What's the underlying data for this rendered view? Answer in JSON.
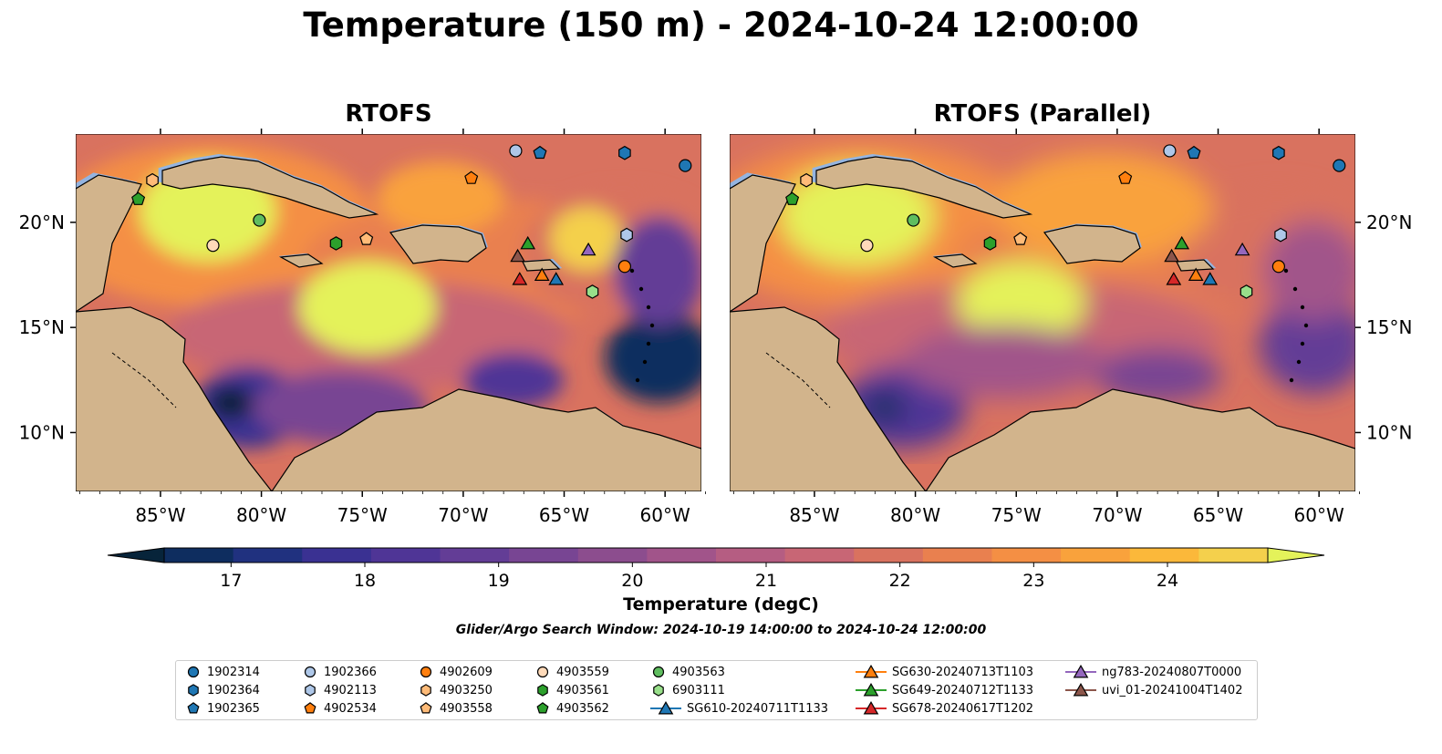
{
  "title": "Temperature (150 m) - 2024-10-24 12:00:00",
  "panels": {
    "left_title": "RTOFS",
    "right_title": "RTOFS (Parallel)"
  },
  "lat_labels": [
    "20°N",
    "15°N",
    "10°N"
  ],
  "lon_labels": [
    "85°W",
    "80°W",
    "75°W",
    "70°W",
    "65°W",
    "60°W"
  ],
  "colorbar": {
    "label": "Temperature (degC)",
    "ticks": [
      "17",
      "18",
      "19",
      "20",
      "21",
      "22",
      "23",
      "24"
    ],
    "range": [
      16.5,
      24.75
    ],
    "colors": [
      "#07243a",
      "#0e2d5f",
      "#20317f",
      "#3a3192",
      "#4f3596",
      "#633d96",
      "#784593",
      "#8c4d8e",
      "#a1548a",
      "#b55d82",
      "#c86675",
      "#d9725f",
      "#e9804f",
      "#f48f44",
      "#f9a23c",
      "#fbb83a",
      "#f4d04c",
      "#e4f25a"
    ]
  },
  "search_window": "Glider/Argo Search Window: 2024-10-19 14:00:00 to 2024-10-24 12:00:00",
  "colors": {
    "land": "#d2b48c",
    "shelf": "#94b4e0",
    "coastline": "#000000"
  },
  "legend": [
    {
      "label": "1902314",
      "marker": "circle",
      "color": "#1f77b4"
    },
    {
      "label": "1902364",
      "marker": "hexagon",
      "color": "#1f77b4"
    },
    {
      "label": "1902365",
      "marker": "pentagon",
      "color": "#1f77b4"
    },
    {
      "label": "1902366",
      "marker": "circle",
      "color": "#aec7e8"
    },
    {
      "label": "4902113",
      "marker": "hexagon",
      "color": "#aec7e8"
    },
    {
      "label": "4902534",
      "marker": "pentagon",
      "color": "#ff7f0e"
    },
    {
      "label": "4902609",
      "marker": "circle",
      "color": "#ff7f0e"
    },
    {
      "label": "4903250",
      "marker": "hexagon",
      "color": "#ffbb78"
    },
    {
      "label": "4903558",
      "marker": "pentagon",
      "color": "#ffbb78"
    },
    {
      "label": "4903559",
      "marker": "circle",
      "color": "#ffdab9"
    },
    {
      "label": "4903561",
      "marker": "hexagon",
      "color": "#2ca02c"
    },
    {
      "label": "4903562",
      "marker": "pentagon",
      "color": "#2ca02c"
    },
    {
      "label": "4903563",
      "marker": "circle",
      "color": "#5fbd5f"
    },
    {
      "label": "6903111",
      "marker": "hexagon",
      "color": "#98df8a"
    },
    {
      "label": "SG610-20240711T1133",
      "marker": "triangle",
      "color": "#1f77b4"
    },
    {
      "label": "SG630-20240713T1103",
      "marker": "triangle",
      "color": "#ff7f0e"
    },
    {
      "label": "SG649-20240712T1133",
      "marker": "triangle",
      "color": "#2ca02c"
    },
    {
      "label": "SG678-20240617T1202",
      "marker": "triangle",
      "color": "#d62728"
    },
    {
      "label": "ng783-20240807T0000",
      "marker": "triangle",
      "color": "#9467bd"
    },
    {
      "label": "uvi_01-20241004T1402",
      "marker": "triangle",
      "color": "#8c564b"
    }
  ],
  "observations": [
    {
      "id": "1902314",
      "lon": -59.0,
      "lat": 22.7
    },
    {
      "id": "1902364",
      "lon": -62.0,
      "lat": 23.3
    },
    {
      "id": "1902365",
      "lon": -66.2,
      "lat": 23.3
    },
    {
      "id": "1902366",
      "lon": -67.4,
      "lat": 23.4
    },
    {
      "id": "4902113",
      "lon": -61.9,
      "lat": 19.4
    },
    {
      "id": "4902534",
      "lon": -69.6,
      "lat": 22.1
    },
    {
      "id": "4902609",
      "lon": -62.0,
      "lat": 17.9
    },
    {
      "id": "4903250",
      "lon": -85.4,
      "lat": 22.0
    },
    {
      "id": "4903558",
      "lon": -74.8,
      "lat": 19.2
    },
    {
      "id": "4903559",
      "lon": -82.4,
      "lat": 18.9
    },
    {
      "id": "4903561",
      "lon": -76.3,
      "lat": 19.0
    },
    {
      "id": "4903562",
      "lon": -86.1,
      "lat": 21.1
    },
    {
      "id": "4903563",
      "lon": -80.1,
      "lat": 20.1
    },
    {
      "id": "6903111",
      "lon": -63.6,
      "lat": 16.7
    },
    {
      "id": "SG610-20240711T1133",
      "lon": -65.4,
      "lat": 17.3
    },
    {
      "id": "SG630-20240713T1103",
      "lon": -66.1,
      "lat": 17.5
    },
    {
      "id": "SG649-20240712T1133",
      "lon": -66.8,
      "lat": 19.0
    },
    {
      "id": "SG678-20240617T1202",
      "lon": -67.2,
      "lat": 17.3
    },
    {
      "id": "ng783-20240807T0000",
      "lon": -63.8,
      "lat": 18.7
    },
    {
      "id": "uvi_01-20241004T1402",
      "lon": -67.3,
      "lat": 18.4
    }
  ],
  "map_extent": {
    "lon": [
      -89.2,
      -58.2
    ],
    "lat": [
      7.2,
      24.2
    ]
  }
}
